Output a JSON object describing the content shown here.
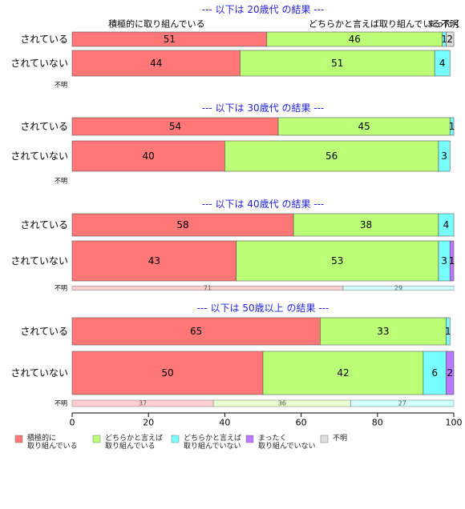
{
  "chart_data": {
    "type": "bar",
    "orientation": "horizontal",
    "stacked": true,
    "xlim": [
      0,
      100
    ],
    "x_ticks": [
      "0",
      "20",
      "40",
      "60",
      "80",
      "100"
    ],
    "grid": false,
    "legend_position": "bottom",
    "segment_names": [
      "積極的に取り組んでいる",
      "どちらかと言えば取り組んでいる",
      "どちらかと言えば取り組んでいない",
      "まったく取り組んでいない",
      "不明"
    ],
    "colors": [
      "#ff7777",
      "#bbff77",
      "#77ffff",
      "#bb77ff",
      "#dddddd"
    ],
    "legend": [
      {
        "line1": "積極的に",
        "line2": "取り組んでいる",
        "color": "#ff7777"
      },
      {
        "line1": "どちらかと言えば",
        "line2": "取り組んでいる",
        "color": "#bbff77"
      },
      {
        "line1": "どちらかと言えば",
        "line2": "取り組んでいない",
        "color": "#77ffff"
      },
      {
        "line1": "まったく",
        "line2": "取り組んでいない",
        "color": "#bb77ff"
      },
      {
        "line1": "不明",
        "line2": "",
        "color": "#dddddd"
      }
    ],
    "top_segment_labels": [
      "積極的に取り組んでいる",
      "どちらかと言えば取り組んでいる",
      "まったく",
      "不明"
    ],
    "panels": [
      {
        "title": "--- 以下は 20歳代 の結果 ---",
        "rows": [
          {
            "label": "されている",
            "values": [
              51,
              46,
              1,
              0,
              2
            ],
            "labels": [
              "51",
              "46",
              "1",
              "",
              "2"
            ]
          },
          {
            "label": "されていない",
            "values": [
              44,
              51,
              4,
              0,
              0
            ],
            "labels": [
              "44",
              "51",
              "4",
              "",
              ""
            ]
          },
          {
            "label": "不明",
            "values": [],
            "labels": []
          }
        ]
      },
      {
        "title": "--- 以下は 30歳代 の結果 ---",
        "rows": [
          {
            "label": "されている",
            "values": [
              54,
              45,
              1,
              0,
              0
            ],
            "labels": [
              "54",
              "45",
              "1",
              "",
              ""
            ]
          },
          {
            "label": "されていない",
            "values": [
              40,
              56,
              3,
              0,
              0
            ],
            "labels": [
              "40",
              "56",
              "3",
              "",
              ""
            ]
          },
          {
            "label": "不明",
            "values": [],
            "labels": []
          }
        ]
      },
      {
        "title": "--- 以下は 40歳代 の結果 ---",
        "rows": [
          {
            "label": "されている",
            "values": [
              58,
              38,
              4,
              0,
              0
            ],
            "labels": [
              "58",
              "38",
              "4",
              "",
              ""
            ]
          },
          {
            "label": "されていない",
            "values": [
              43,
              53,
              3,
              1,
              0
            ],
            "labels": [
              "43",
              "53",
              "3",
              "1",
              ""
            ]
          },
          {
            "label": "不明",
            "values": [
              71,
              0,
              29,
              0,
              0
            ],
            "labels": [
              "71",
              "",
              "29",
              "",
              ""
            ]
          }
        ]
      },
      {
        "title": "--- 以下は 50歳以上 の結果 ---",
        "rows": [
          {
            "label": "されている",
            "values": [
              65,
              33,
              1,
              0,
              0
            ],
            "labels": [
              "65",
              "33",
              "1",
              "",
              ""
            ]
          },
          {
            "label": "されていない",
            "values": [
              50,
              42,
              6,
              2,
              0
            ],
            "labels": [
              "50",
              "42",
              "6",
              "2",
              ""
            ]
          },
          {
            "label": "不明",
            "values": [
              37,
              36,
              27,
              0,
              0
            ],
            "labels": [
              "37",
              "36",
              "27",
              "",
              ""
            ]
          }
        ]
      }
    ]
  }
}
